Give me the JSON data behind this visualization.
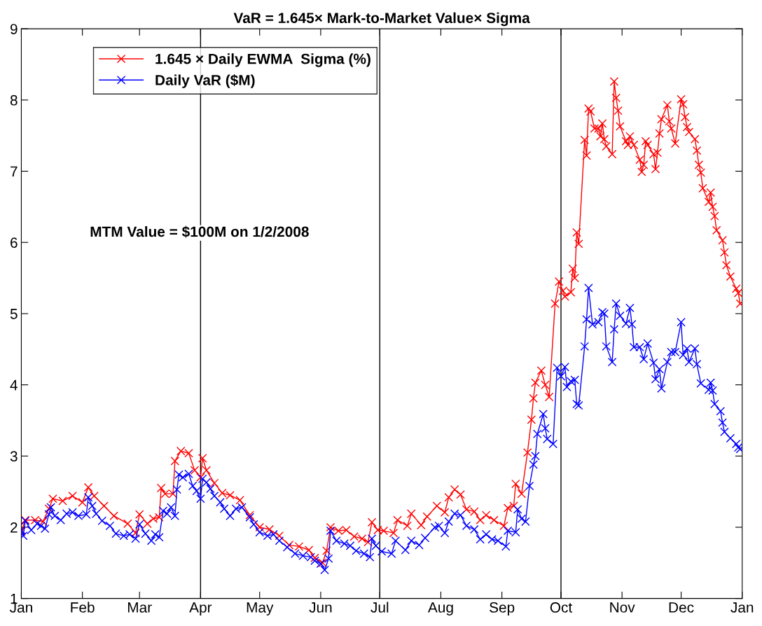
{
  "chart_data": {
    "type": "line",
    "title": "VaR = 1.645× Mark-to-Market Value× Sigma",
    "annotations": [
      "MTM Value = $100M on 1/2/2008"
    ],
    "xlim": [
      "2008-01-01",
      "2009-01-01"
    ],
    "xticks": [
      {
        "value": "2008-01-01",
        "label": "Jan"
      },
      {
        "value": "2008-02-01",
        "label": "Feb"
      },
      {
        "value": "2008-03-01",
        "label": "Mar"
      },
      {
        "value": "2008-04-01",
        "label": "Apr"
      },
      {
        "value": "2008-05-01",
        "label": "May"
      },
      {
        "value": "2008-06-01",
        "label": "Jun"
      },
      {
        "value": "2008-07-01",
        "label": "Jul"
      },
      {
        "value": "2008-08-01",
        "label": "Aug"
      },
      {
        "value": "2008-09-01",
        "label": "Sep"
      },
      {
        "value": "2008-10-01",
        "label": "Oct"
      },
      {
        "value": "2008-11-01",
        "label": "Nov"
      },
      {
        "value": "2008-12-01",
        "label": "Dec"
      },
      {
        "value": "2009-01-01",
        "label": "Jan"
      }
    ],
    "ylim": [
      1,
      9
    ],
    "yticks": [
      1,
      2,
      3,
      4,
      5,
      6,
      7,
      8,
      9
    ],
    "grid": false,
    "legend": "top left",
    "marker": "cross",
    "line_style": "solid",
    "ref_lines": [
      {
        "axis": "x",
        "value": "2008-04-01",
        "color": "#000000"
      },
      {
        "axis": "x",
        "value": "2008-07-01",
        "color": "#000000"
      },
      {
        "axis": "x",
        "value": "2008-10-01",
        "color": "#000000"
      }
    ],
    "series": [
      {
        "name": "1.645 × Daily EWMA  Sigma (%)",
        "color": "#ff0000",
        "x": [
          "2008-01-01",
          "2008-01-03",
          "2008-01-08",
          "2008-01-12",
          "2008-01-15",
          "2008-01-17",
          "2008-01-22",
          "2008-01-27",
          "2008-02-01",
          "2008-02-04",
          "2008-02-07",
          "2008-02-12",
          "2008-02-17",
          "2008-02-24",
          "2008-02-28",
          "2008-03-01",
          "2008-03-05",
          "2008-03-08",
          "2008-03-11",
          "2008-03-12",
          "2008-03-14",
          "2008-03-18",
          "2008-03-19",
          "2008-03-22",
          "2008-03-26",
          "2008-03-29",
          "2008-04-01",
          "2008-04-02",
          "2008-04-04",
          "2008-04-08",
          "2008-04-12",
          "2008-04-16",
          "2008-04-21",
          "2008-04-26",
          "2008-05-01",
          "2008-05-06",
          "2008-05-11",
          "2008-05-16",
          "2008-05-21",
          "2008-05-26",
          "2008-05-29",
          "2008-06-02",
          "2008-06-04",
          "2008-06-06",
          "2008-06-10",
          "2008-06-14",
          "2008-06-18",
          "2008-06-22",
          "2008-06-25",
          "2008-06-27",
          "2008-06-30",
          "2008-07-03",
          "2008-07-08",
          "2008-07-10",
          "2008-07-15",
          "2008-07-17",
          "2008-07-22",
          "2008-07-25",
          "2008-07-30",
          "2008-08-03",
          "2008-08-05",
          "2008-08-08",
          "2008-08-11",
          "2008-08-14",
          "2008-08-18",
          "2008-08-21",
          "2008-08-24",
          "2008-08-28",
          "2008-09-02",
          "2008-09-04",
          "2008-09-07",
          "2008-09-08",
          "2008-09-11",
          "2008-09-14",
          "2008-09-16",
          "2008-09-17",
          "2008-09-18",
          "2008-09-21",
          "2008-09-23",
          "2008-09-25",
          "2008-09-28",
          "2008-09-30",
          "2008-10-02",
          "2008-10-03",
          "2008-10-06",
          "2008-10-07",
          "2008-10-08",
          "2008-10-09",
          "2008-10-10",
          "2008-10-13",
          "2008-10-14",
          "2008-10-15",
          "2008-10-16",
          "2008-10-18",
          "2008-10-20",
          "2008-10-21",
          "2008-10-22",
          "2008-10-23",
          "2008-10-24",
          "2008-10-27",
          "2008-10-28",
          "2008-10-29",
          "2008-10-30",
          "2008-10-31",
          "2008-11-03",
          "2008-11-04",
          "2008-11-05",
          "2008-11-07",
          "2008-11-10",
          "2008-11-11",
          "2008-11-12",
          "2008-11-13",
          "2008-11-14",
          "2008-11-17",
          "2008-11-18",
          "2008-11-19",
          "2008-11-20",
          "2008-11-21",
          "2008-11-24",
          "2008-11-25",
          "2008-11-26",
          "2008-11-28",
          "2008-12-01",
          "2008-12-02",
          "2008-12-03",
          "2008-12-04",
          "2008-12-05",
          "2008-12-08",
          "2008-12-09",
          "2008-12-10",
          "2008-12-11",
          "2008-12-12",
          "2008-12-15",
          "2008-12-16",
          "2008-12-17",
          "2008-12-18",
          "2008-12-19",
          "2008-12-22",
          "2008-12-23",
          "2008-12-24",
          "2008-12-26",
          "2008-12-29",
          "2008-12-30",
          "2008-12-31"
        ],
        "values": [
          1.94,
          2.1,
          2.1,
          2.08,
          2.26,
          2.4,
          2.37,
          2.44,
          2.35,
          2.56,
          2.44,
          2.3,
          2.16,
          2.05,
          1.92,
          2.18,
          2.05,
          2.12,
          2.14,
          2.55,
          2.47,
          2.47,
          2.93,
          3.07,
          3.04,
          2.8,
          2.7,
          2.97,
          2.8,
          2.62,
          2.48,
          2.45,
          2.38,
          2.17,
          2.0,
          1.97,
          1.88,
          1.75,
          1.73,
          1.68,
          1.57,
          1.5,
          1.67,
          2.0,
          1.95,
          1.96,
          1.87,
          1.84,
          1.79,
          2.07,
          1.96,
          1.95,
          1.92,
          2.1,
          2.02,
          2.19,
          2.03,
          2.15,
          2.3,
          2.21,
          2.42,
          2.53,
          2.46,
          2.25,
          2.22,
          2.1,
          2.17,
          2.1,
          2.02,
          2.27,
          2.3,
          2.61,
          2.47,
          3.05,
          3.51,
          3.81,
          4.03,
          4.2,
          4.0,
          3.83,
          5.14,
          5.45,
          5.32,
          5.24,
          5.3,
          5.63,
          5.5,
          6.14,
          5.98,
          7.44,
          7.22,
          7.88,
          7.84,
          7.6,
          7.6,
          7.49,
          7.67,
          7.45,
          7.35,
          7.24,
          8.26,
          8.03,
          7.85,
          7.63,
          7.42,
          7.37,
          7.49,
          7.37,
          7.16,
          6.99,
          7.09,
          7.42,
          7.37,
          7.24,
          7.03,
          7.26,
          7.53,
          7.73,
          7.93,
          7.7,
          7.6,
          7.39,
          8.01,
          7.94,
          7.76,
          7.62,
          7.55,
          7.45,
          7.29,
          7.09,
          6.98,
          6.76,
          6.57,
          6.7,
          6.5,
          6.37,
          6.17,
          6.03,
          5.86,
          5.68,
          5.52,
          5.35,
          5.29,
          5.14
        ]
      },
      {
        "name": "Daily VaR ($M)",
        "color": "#0000ff",
        "x": [
          "2008-01-01",
          "2008-01-02",
          "2008-01-03",
          "2008-01-06",
          "2008-01-09",
          "2008-01-11",
          "2008-01-13",
          "2008-01-15",
          "2008-01-16",
          "2008-01-18",
          "2008-01-21",
          "2008-01-24",
          "2008-01-27",
          "2008-01-30",
          "2008-02-03",
          "2008-02-04",
          "2008-02-06",
          "2008-02-08",
          "2008-02-11",
          "2008-02-15",
          "2008-02-18",
          "2008-02-22",
          "2008-02-25",
          "2008-02-28",
          "2008-03-01",
          "2008-03-04",
          "2008-03-07",
          "2008-03-09",
          "2008-03-11",
          "2008-03-13",
          "2008-03-15",
          "2008-03-17",
          "2008-03-19",
          "2008-03-20",
          "2008-03-21",
          "2008-03-23",
          "2008-03-26",
          "2008-03-28",
          "2008-03-30",
          "2008-04-01",
          "2008-04-02",
          "2008-04-04",
          "2008-04-06",
          "2008-04-08",
          "2008-04-11",
          "2008-04-13",
          "2008-04-16",
          "2008-04-19",
          "2008-04-22",
          "2008-04-26",
          "2008-04-28",
          "2008-05-01",
          "2008-05-05",
          "2008-05-08",
          "2008-05-11",
          "2008-05-15",
          "2008-05-19",
          "2008-05-23",
          "2008-05-27",
          "2008-05-29",
          "2008-06-01",
          "2008-06-03",
          "2008-06-05",
          "2008-06-06",
          "2008-06-09",
          "2008-06-13",
          "2008-06-16",
          "2008-06-19",
          "2008-06-23",
          "2008-06-26",
          "2008-06-27",
          "2008-06-29",
          "2008-07-02",
          "2008-07-07",
          "2008-07-09",
          "2008-07-14",
          "2008-07-17",
          "2008-07-21",
          "2008-07-24",
          "2008-07-29",
          "2008-07-31",
          "2008-08-03",
          "2008-08-05",
          "2008-08-08",
          "2008-08-11",
          "2008-08-14",
          "2008-08-18",
          "2008-08-21",
          "2008-08-24",
          "2008-08-27",
          "2008-08-30",
          "2008-09-03",
          "2008-09-04",
          "2008-09-08",
          "2008-09-09",
          "2008-09-11",
          "2008-09-13",
          "2008-09-15",
          "2008-09-17",
          "2008-09-18",
          "2008-09-19",
          "2008-09-22",
          "2008-09-23",
          "2008-09-24",
          "2008-09-27",
          "2008-09-29",
          "2008-10-01",
          "2008-10-03",
          "2008-10-04",
          "2008-10-06",
          "2008-10-08",
          "2008-10-09",
          "2008-10-10",
          "2008-10-13",
          "2008-10-14",
          "2008-10-15",
          "2008-10-17",
          "2008-10-20",
          "2008-10-22",
          "2008-10-23",
          "2008-10-24",
          "2008-10-27",
          "2008-10-28",
          "2008-10-29",
          "2008-10-31",
          "2008-11-03",
          "2008-11-05",
          "2008-11-06",
          "2008-11-07",
          "2008-11-10",
          "2008-11-12",
          "2008-11-14",
          "2008-11-17",
          "2008-11-18",
          "2008-11-20",
          "2008-11-21",
          "2008-11-24",
          "2008-11-26",
          "2008-11-28",
          "2008-12-01",
          "2008-12-02",
          "2008-12-04",
          "2008-12-05",
          "2008-12-08",
          "2008-12-09",
          "2008-12-11",
          "2008-12-15",
          "2008-12-16",
          "2008-12-17",
          "2008-12-18",
          "2008-12-21",
          "2008-12-22",
          "2008-12-23",
          "2008-12-26",
          "2008-12-29",
          "2008-12-30",
          "2008-12-31"
        ],
        "values": [
          1.96,
          1.88,
          2.09,
          1.96,
          2.05,
          2.02,
          1.98,
          2.18,
          2.28,
          2.16,
          2.1,
          2.19,
          2.21,
          2.16,
          2.18,
          2.42,
          2.3,
          2.19,
          2.09,
          2.02,
          1.91,
          1.88,
          1.9,
          1.84,
          2.04,
          1.91,
          1.81,
          1.9,
          1.86,
          2.23,
          2.19,
          2.28,
          2.16,
          2.53,
          2.74,
          2.7,
          2.75,
          2.58,
          2.51,
          2.4,
          2.68,
          2.63,
          2.54,
          2.44,
          2.35,
          2.26,
          2.16,
          2.26,
          2.28,
          2.14,
          2.04,
          1.93,
          1.88,
          1.9,
          1.81,
          1.72,
          1.63,
          1.6,
          1.58,
          1.53,
          1.49,
          1.4,
          1.56,
          1.95,
          1.81,
          1.77,
          1.74,
          1.67,
          1.63,
          1.58,
          1.84,
          1.74,
          1.66,
          1.63,
          1.81,
          1.68,
          1.81,
          1.75,
          1.85,
          2.0,
          2.02,
          1.92,
          2.08,
          2.19,
          2.17,
          2.02,
          1.97,
          1.83,
          1.9,
          1.83,
          1.81,
          1.73,
          1.95,
          1.93,
          2.25,
          2.12,
          2.08,
          2.58,
          2.88,
          3.0,
          3.31,
          3.59,
          3.39,
          3.24,
          3.17,
          4.24,
          4.12,
          4.25,
          3.97,
          4.05,
          4.07,
          3.73,
          3.71,
          4.54,
          4.92,
          5.36,
          4.85,
          4.88,
          5.02,
          5.0,
          4.54,
          4.32,
          4.78,
          5.14,
          4.97,
          4.86,
          5.08,
          4.85,
          4.53,
          4.53,
          4.36,
          4.58,
          4.31,
          4.08,
          4.22,
          3.95,
          4.32,
          4.46,
          4.46,
          4.88,
          4.42,
          4.51,
          4.32,
          4.51,
          4.29,
          4.02,
          3.93,
          4.03,
          3.92,
          3.73,
          3.63,
          3.47,
          3.34,
          3.25,
          3.17,
          3.12,
          3.1
        ]
      }
    ]
  }
}
